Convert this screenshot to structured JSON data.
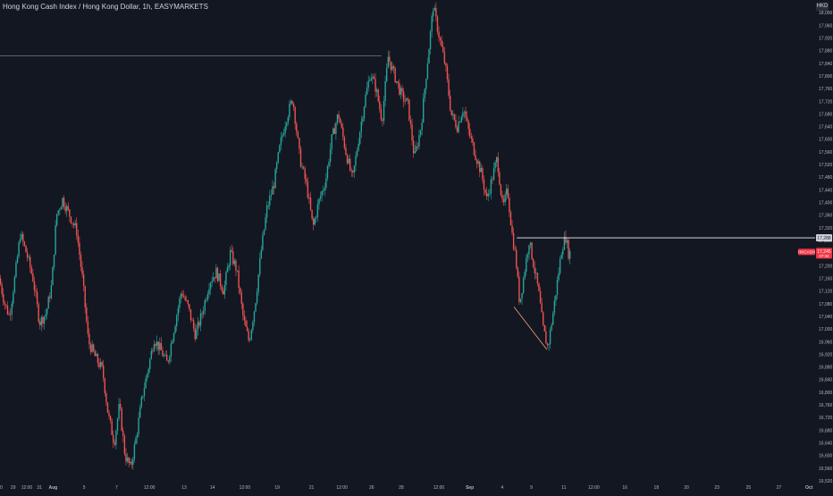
{
  "chart_data": {
    "type": "candlestick",
    "title": "Hong Kong Cash Index / Hong Kong Dollar, 1h, EASYMARKETS",
    "currency": "HKD",
    "colors": {
      "background": "#131722",
      "up": "#26a69a",
      "down": "#ef5350",
      "axis_text": "#b2b5be",
      "drawing_line": "#787b86",
      "horizontal_line": "#d1d4dc",
      "trend_line": "#f7a172",
      "price_label_bg": "#f23645",
      "level_label_bg": "#d1d4dc"
    },
    "ylim": [
      16520,
      18040
    ],
    "y_ticks": [
      18000,
      17960,
      17920,
      17880,
      17840,
      17800,
      17760,
      17720,
      17680,
      17640,
      17600,
      17560,
      17520,
      17480,
      17440,
      17400,
      17360,
      17320,
      17280,
      17240,
      17200,
      17160,
      17120,
      17080,
      17040,
      17000,
      16960,
      16920,
      16880,
      16840,
      16800,
      16760,
      16720,
      16680,
      16640,
      16600,
      16560,
      16520
    ],
    "y_tick_labels": [
      "18,000",
      "17,960",
      "17,920",
      "17,880",
      "17,840",
      "17,800",
      "17,760",
      "17,720",
      "17,680",
      "17,640",
      "17,600",
      "17,560",
      "17,520",
      "17,480",
      "17,440",
      "17,400",
      "17,360",
      "17,320",
      "17,280",
      "17,240",
      "17,200",
      "17,160",
      "17,120",
      "17,080",
      "17,040",
      "17,000",
      "16,960",
      "16,920",
      "16,880",
      "16,840",
      "16,800",
      "16,760",
      "16,720",
      "16,680",
      "16,640",
      "16,600",
      "16,560",
      "16,520"
    ],
    "x_ticks": [
      "00",
      "29",
      "12:00",
      "31",
      "Aug",
      "5",
      "7",
      "12:00",
      "13",
      "14",
      "12:00",
      "19",
      "21",
      "12:00",
      "26",
      "28",
      "12:00",
      "Sep",
      "4",
      "9",
      "11",
      "12:00",
      "16",
      "18",
      "20",
      "23",
      "25",
      "27",
      "Oct"
    ],
    "x_tick_index": [
      0,
      28,
      57,
      84,
      113,
      179,
      248,
      318,
      392,
      452,
      521,
      590,
      663,
      728,
      791,
      854,
      934,
      1000,
      1069,
      1131,
      1200,
      1264,
      1330,
      1397,
      1461,
      1526,
      1593,
      1658,
      1722
    ],
    "x_range": [
      0,
      1735
    ],
    "series_points": [
      {
        "i": 0,
        "v": 17160
      },
      {
        "i": 12,
        "v": 17080
      },
      {
        "i": 22,
        "v": 17040
      },
      {
        "i": 35,
        "v": 17180
      },
      {
        "i": 45,
        "v": 17300
      },
      {
        "i": 58,
        "v": 17240
      },
      {
        "i": 72,
        "v": 17160
      },
      {
        "i": 86,
        "v": 17020
      },
      {
        "i": 100,
        "v": 17050
      },
      {
        "i": 112,
        "v": 17140
      },
      {
        "i": 122,
        "v": 17360
      },
      {
        "i": 135,
        "v": 17410
      },
      {
        "i": 150,
        "v": 17360
      },
      {
        "i": 165,
        "v": 17310
      },
      {
        "i": 178,
        "v": 17150
      },
      {
        "i": 190,
        "v": 16960
      },
      {
        "i": 205,
        "v": 16910
      },
      {
        "i": 220,
        "v": 16870
      },
      {
        "i": 232,
        "v": 16730
      },
      {
        "i": 245,
        "v": 16640
      },
      {
        "i": 256,
        "v": 16760
      },
      {
        "i": 268,
        "v": 16600
      },
      {
        "i": 280,
        "v": 16560
      },
      {
        "i": 292,
        "v": 16660
      },
      {
        "i": 305,
        "v": 16790
      },
      {
        "i": 318,
        "v": 16880
      },
      {
        "i": 330,
        "v": 16970
      },
      {
        "i": 345,
        "v": 16930
      },
      {
        "i": 358,
        "v": 16890
      },
      {
        "i": 372,
        "v": 17000
      },
      {
        "i": 388,
        "v": 17120
      },
      {
        "i": 402,
        "v": 17070
      },
      {
        "i": 418,
        "v": 16980
      },
      {
        "i": 432,
        "v": 17050
      },
      {
        "i": 448,
        "v": 17150
      },
      {
        "i": 462,
        "v": 17180
      },
      {
        "i": 478,
        "v": 17120
      },
      {
        "i": 492,
        "v": 17240
      },
      {
        "i": 505,
        "v": 17190
      },
      {
        "i": 520,
        "v": 17030
      },
      {
        "i": 532,
        "v": 16960
      },
      {
        "i": 545,
        "v": 17080
      },
      {
        "i": 558,
        "v": 17250
      },
      {
        "i": 570,
        "v": 17380
      },
      {
        "i": 585,
        "v": 17460
      },
      {
        "i": 598,
        "v": 17580
      },
      {
        "i": 610,
        "v": 17660
      },
      {
        "i": 625,
        "v": 17730
      },
      {
        "i": 640,
        "v": 17540
      },
      {
        "i": 655,
        "v": 17450
      },
      {
        "i": 668,
        "v": 17320
      },
      {
        "i": 680,
        "v": 17400
      },
      {
        "i": 695,
        "v": 17470
      },
      {
        "i": 708,
        "v": 17600
      },
      {
        "i": 722,
        "v": 17680
      },
      {
        "i": 738,
        "v": 17560
      },
      {
        "i": 752,
        "v": 17470
      },
      {
        "i": 765,
        "v": 17600
      },
      {
        "i": 778,
        "v": 17720
      },
      {
        "i": 790,
        "v": 17810
      },
      {
        "i": 802,
        "v": 17760
      },
      {
        "i": 815,
        "v": 17660
      },
      {
        "i": 828,
        "v": 17860
      },
      {
        "i": 842,
        "v": 17800
      },
      {
        "i": 856,
        "v": 17740
      },
      {
        "i": 870,
        "v": 17710
      },
      {
        "i": 884,
        "v": 17540
      },
      {
        "i": 898,
        "v": 17640
      },
      {
        "i": 910,
        "v": 17820
      },
      {
        "i": 924,
        "v": 18020
      },
      {
        "i": 936,
        "v": 17930
      },
      {
        "i": 950,
        "v": 17830
      },
      {
        "i": 962,
        "v": 17680
      },
      {
        "i": 975,
        "v": 17640
      },
      {
        "i": 988,
        "v": 17700
      },
      {
        "i": 1000,
        "v": 17620
      },
      {
        "i": 1012,
        "v": 17560
      },
      {
        "i": 1025,
        "v": 17500
      },
      {
        "i": 1038,
        "v": 17410
      },
      {
        "i": 1050,
        "v": 17480
      },
      {
        "i": 1060,
        "v": 17540
      },
      {
        "i": 1072,
        "v": 17380
      },
      {
        "i": 1082,
        "v": 17440
      },
      {
        "i": 1092,
        "v": 17300
      },
      {
        "i": 1100,
        "v": 17220
      },
      {
        "i": 1108,
        "v": 17080
      },
      {
        "i": 1118,
        "v": 17180
      },
      {
        "i": 1128,
        "v": 17280
      },
      {
        "i": 1138,
        "v": 17200
      },
      {
        "i": 1148,
        "v": 17120
      },
      {
        "i": 1158,
        "v": 17000
      },
      {
        "i": 1168,
        "v": 16940
      },
      {
        "i": 1178,
        "v": 17040
      },
      {
        "i": 1190,
        "v": 17170
      },
      {
        "i": 1198,
        "v": 17260
      },
      {
        "i": 1206,
        "v": 17290
      },
      {
        "i": 1212,
        "v": 17240
      }
    ],
    "annotations": [
      {
        "type": "horizontal_ray",
        "value": 17863,
        "i_start": 0,
        "i_end": 812
      },
      {
        "type": "horizontal_line",
        "value": 17288,
        "i_start": 1100,
        "label": "17,288"
      },
      {
        "type": "trend_line",
        "from": {
          "i": 1094,
          "v": 17070
        },
        "to": {
          "i": 1164,
          "v": 16935
        }
      }
    ],
    "last_price": {
      "value": 17245,
      "label": "17,245",
      "symbol": "HKCASH",
      "countdown": "07:34"
    }
  }
}
